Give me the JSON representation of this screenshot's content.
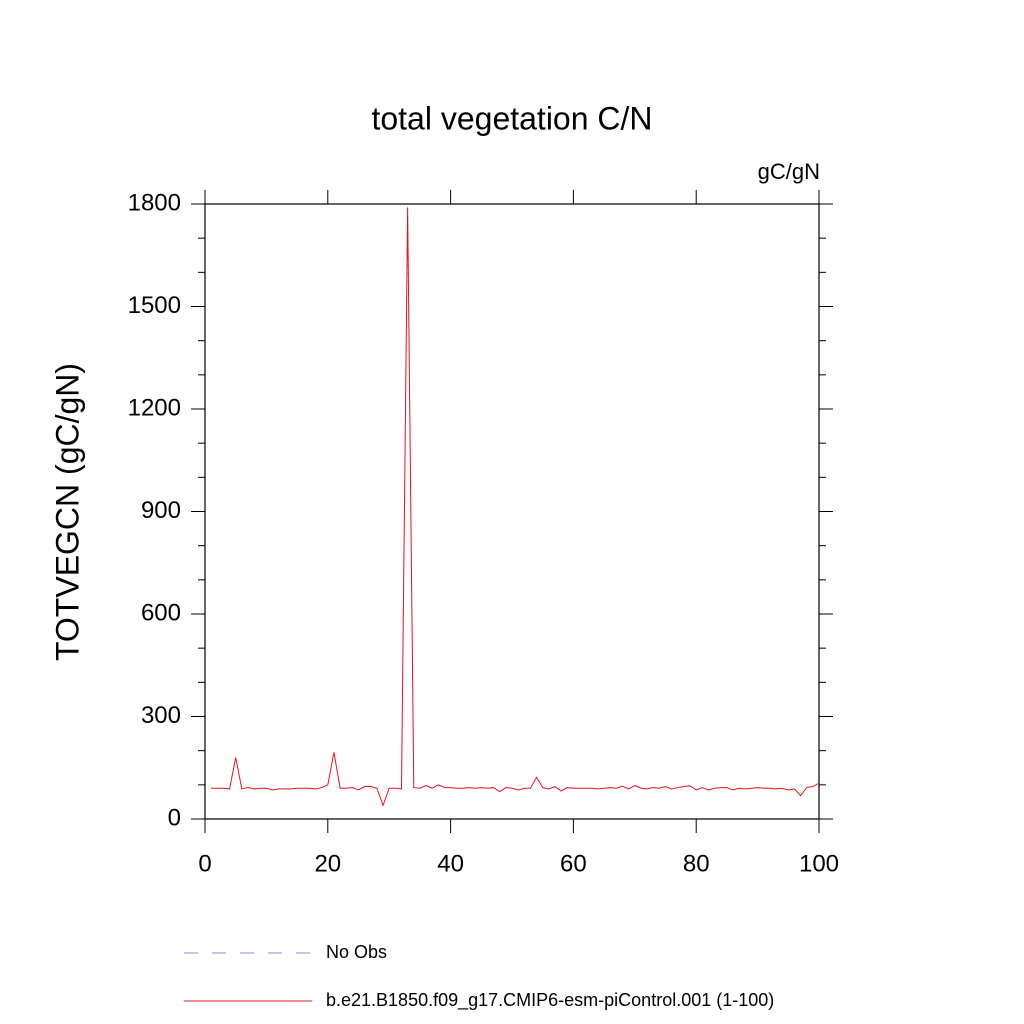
{
  "chart_data": {
    "type": "line",
    "title": "total vegetation C/N",
    "units": "gC/gN",
    "ylabel": "TOTVEGCN  (gC/gN)",
    "x": [
      1,
      2,
      3,
      4,
      5,
      6,
      7,
      8,
      9,
      10,
      11,
      12,
      13,
      14,
      15,
      16,
      17,
      18,
      19,
      20,
      21,
      22,
      23,
      24,
      25,
      26,
      27,
      28,
      29,
      30,
      31,
      32,
      33,
      34,
      35,
      36,
      37,
      38,
      39,
      40,
      41,
      42,
      43,
      44,
      45,
      46,
      47,
      48,
      49,
      50,
      51,
      52,
      53,
      54,
      55,
      56,
      57,
      58,
      59,
      60,
      61,
      62,
      63,
      64,
      65,
      66,
      67,
      68,
      69,
      70,
      71,
      72,
      73,
      74,
      75,
      76,
      77,
      78,
      79,
      80,
      81,
      82,
      83,
      84,
      85,
      86,
      87,
      88,
      89,
      90,
      91,
      92,
      93,
      94,
      95,
      96,
      97,
      98,
      99,
      100
    ],
    "series": [
      {
        "name": "b.e21.B1850.f09_g17.CMIP6-esm-piControl.001 (1-100)",
        "color": "#e8141c",
        "dashed": false,
        "values": [
          90,
          90,
          90,
          88,
          180,
          88,
          92,
          88,
          90,
          90,
          85,
          88,
          88,
          88,
          90,
          90,
          90,
          88,
          92,
          100,
          195,
          90,
          90,
          92,
          85,
          95,
          95,
          90,
          40,
          90,
          90,
          88,
          1790,
          92,
          90,
          98,
          90,
          100,
          92,
          92,
          90,
          90,
          92,
          90,
          92,
          90,
          92,
          80,
          92,
          90,
          85,
          90,
          90,
          122,
          92,
          88,
          95,
          82,
          92,
          90,
          90,
          90,
          90,
          88,
          90,
          92,
          90,
          96,
          88,
          98,
          90,
          88,
          92,
          90,
          95,
          88,
          92,
          95,
          97,
          85,
          92,
          85,
          90,
          92,
          92,
          85,
          90,
          88,
          90,
          92,
          90,
          90,
          88,
          90,
          85,
          88,
          68,
          92,
          95,
          105
        ]
      }
    ],
    "legend_extra": [
      {
        "name": "No Obs",
        "color": "#8a8ad8",
        "dashed": true
      }
    ],
    "xlim": [
      0,
      100
    ],
    "xticks": [
      0,
      20,
      40,
      60,
      80,
      100
    ],
    "ylim": [
      0,
      1800
    ],
    "yticks": [
      0,
      300,
      600,
      900,
      1200,
      1500,
      1800
    ],
    "yminorticks": [
      100,
      200,
      400,
      500,
      700,
      800,
      1000,
      1100,
      1300,
      1400,
      1600,
      1700
    ]
  }
}
